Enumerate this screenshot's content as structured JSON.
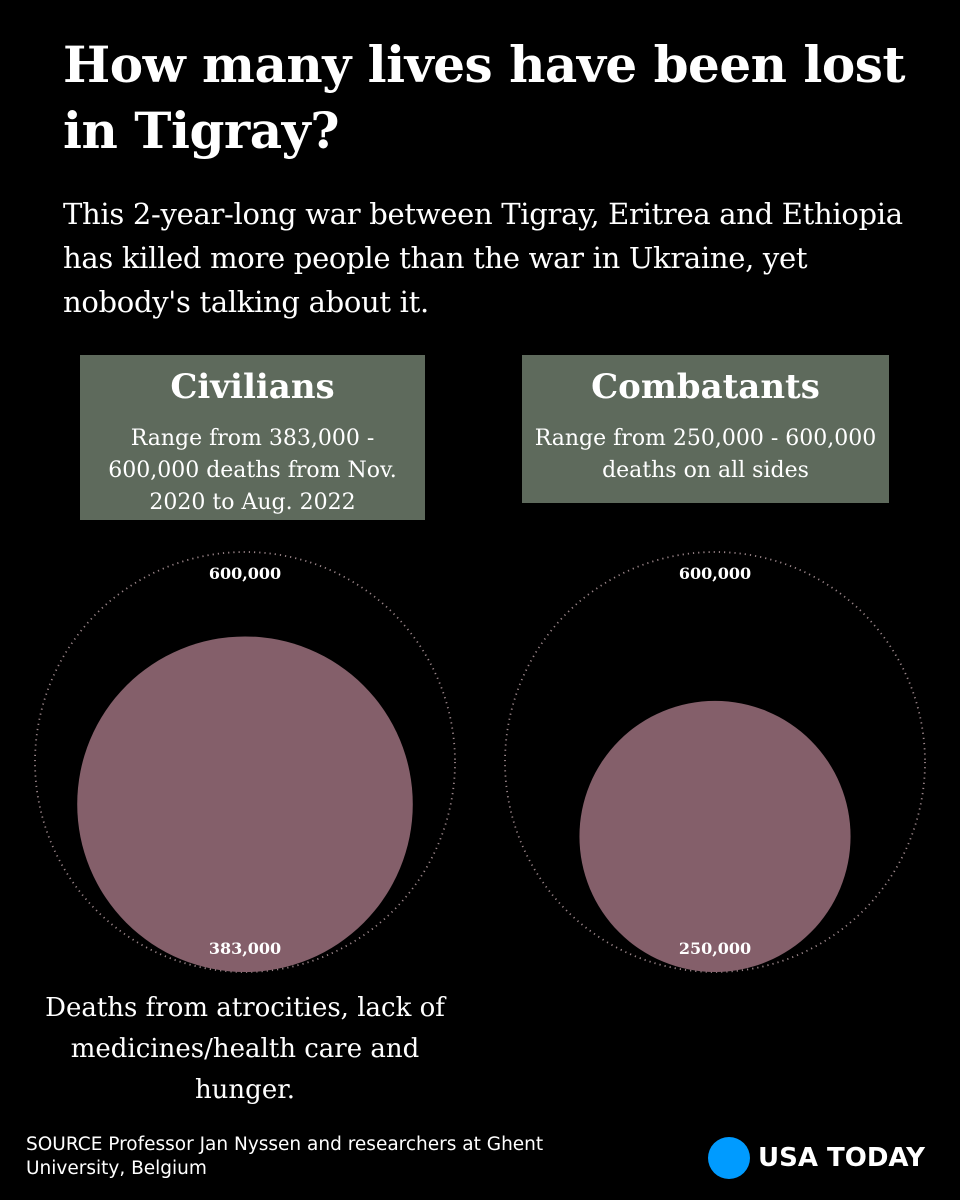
{
  "title": "How many lives have been lost in Tigray?",
  "subtitle": "This 2-year-long war between Tigray, Eritrea and Ethiopia has killed more people than the war in Ukraine, yet nobody's talking about it.",
  "panels": [
    {
      "heading": "Civilians",
      "description": "Range from 383,000 - 600,000 deaths from Nov. 2020 to Aug. 2022"
    },
    {
      "heading": "Combatants",
      "description": "Range from 250,000 - 600,000 deaths on all sides"
    }
  ],
  "note": "Deaths from atrocities, lack of medicines/health care and hunger.",
  "source": "SOURCE Professor Jan Nyssen and researchers at Ghent University, Belgium",
  "brand": "USA TODAY",
  "colors": {
    "background": "#000000",
    "panel": "#5e6a5c",
    "bubble": "#845f6a",
    "outline": "#9a8589",
    "brand_dot": "#009bff"
  },
  "chart_data": [
    {
      "type": "bubble",
      "title": "Civilians",
      "series": [
        {
          "name": "",
          "values": [
            600000
          ],
          "labels": [
            "600,000"
          ],
          "style": "dotted-outline"
        },
        {
          "name": "",
          "values": [
            383000
          ],
          "labels": [
            "383,000"
          ],
          "style": "filled"
        }
      ]
    },
    {
      "type": "bubble",
      "title": "Combatants",
      "series": [
        {
          "name": "",
          "values": [
            600000
          ],
          "labels": [
            "600,000"
          ],
          "style": "dotted-outline"
        },
        {
          "name": "",
          "values": [
            250000
          ],
          "labels": [
            "250,000"
          ],
          "style": "filled"
        }
      ]
    }
  ]
}
